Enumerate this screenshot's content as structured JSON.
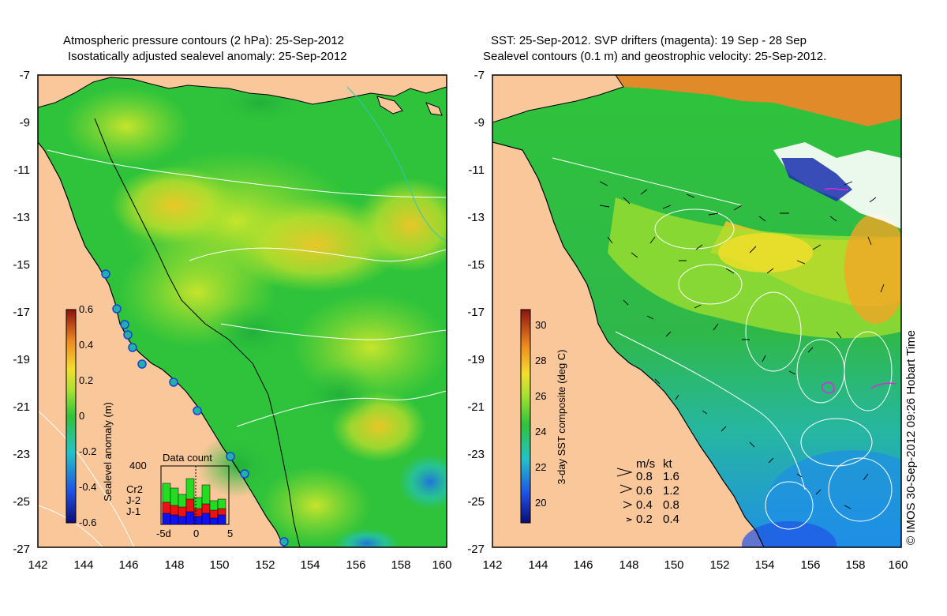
{
  "left_panel": {
    "title_line1": "Atmospheric pressure contours (2 hPa): 25-Sep-2012",
    "title_line2": "Isostatically adjusted sealevel anomaly: 25-Sep-2012",
    "colorbar": {
      "label": "Sealevel anomaly (m)",
      "ticks": [
        "0.6",
        "0.4",
        "0.2",
        "0",
        "-0.2",
        "-0.4",
        "-0.6"
      ],
      "range": [
        -0.6,
        0.6
      ]
    },
    "inset": {
      "title": "Data count",
      "y_max_label": "400",
      "x_ticks": [
        "-5d",
        "0",
        "5"
      ],
      "legend": [
        {
          "label": "Cr2",
          "color": "#22dd22"
        },
        {
          "label": "J-2",
          "color": "#ee1111"
        },
        {
          "label": "J-1",
          "color": "#1111ee"
        }
      ]
    }
  },
  "right_panel": {
    "title_line1": "SST: 25-Sep-2012. SVP drifters (magenta): 19 Sep - 28 Sep",
    "title_line2": "Sealevel contours (0.1 m) and geostrophic velocity: 25-Sep-2012.",
    "colorbar": {
      "label": "3-day SST composite (deg C)",
      "ticks": [
        "30",
        "28",
        "26",
        "24",
        "22",
        "20"
      ],
      "range": [
        19,
        31
      ]
    },
    "velocity_legend": {
      "header_ms": "m/s",
      "header_kt": "kt",
      "rows": [
        {
          "ms": "0.8",
          "kt": "1.6"
        },
        {
          "ms": "0.6",
          "kt": "1.2"
        },
        {
          "ms": "0.4",
          "kt": "0.8"
        },
        {
          "ms": "0.2",
          "kt": "0.4"
        }
      ]
    }
  },
  "axes": {
    "lat_labels": [
      "-7",
      "-9",
      "-11",
      "-13",
      "-15",
      "-17",
      "-19",
      "-21",
      "-23",
      "-25",
      "-27"
    ],
    "lon_labels": [
      "142",
      "144",
      "146",
      "148",
      "150",
      "152",
      "154",
      "156",
      "158",
      "160"
    ],
    "lat_range": [
      -27,
      -7
    ],
    "lon_range": [
      142,
      160
    ]
  },
  "credit": "© IMOS 30-Sep-2012 09:26 Hobart Time",
  "colors": {
    "land": "#f9c799",
    "green": "#2fc33b",
    "yellow_green": "#a6e22e",
    "yellow": "#f2df2a",
    "orange": "#f2a526",
    "cyan": "#2fc6bb",
    "blue": "#2d88e0",
    "magenta": "#d92ad9"
  }
}
